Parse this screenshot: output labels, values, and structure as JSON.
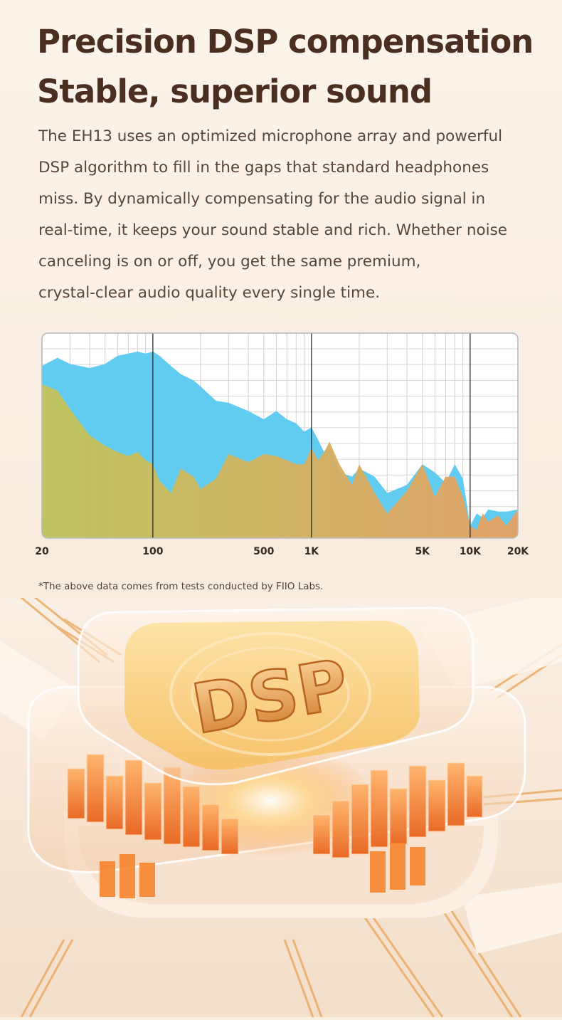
{
  "headline": {
    "line1": "Precision DSP compensation",
    "line2": "Stable, superior sound"
  },
  "body": {
    "lines": [
      "The EH13 uses an optimized microphone array and powerful",
      "DSP algorithm to fill in the gaps that standard headphones",
      "miss. By dynamically compensating for the audio signal in",
      "real-time, it keeps your sound stable and rich. Whether noise",
      "canceling is on or off, you get the same premium,",
      "crystal-clear audio quality every single time."
    ]
  },
  "footnote": "*The above data comes from tests conducted by FIIO Labs.",
  "illustration": {
    "label": "DSP"
  },
  "colors": {
    "heading": "#4a2e20",
    "body": "#5a4538",
    "series_blue": "#62ccf0",
    "series_green": "#c4c45a",
    "series_orange": "#e6a062"
  },
  "chart_data": {
    "type": "area",
    "xscale": "log",
    "xlim": [
      20,
      20000
    ],
    "ylim": [
      0,
      100
    ],
    "grid": true,
    "x_ticks": [
      {
        "value": 20,
        "label": "20"
      },
      {
        "value": 100,
        "label": "100"
      },
      {
        "value": 500,
        "label": "500"
      },
      {
        "value": 1000,
        "label": "1K"
      },
      {
        "value": 5000,
        "label": "5K"
      },
      {
        "value": 10000,
        "label": "10K"
      },
      {
        "value": 20000,
        "label": "20K"
      }
    ],
    "series": [
      {
        "color": "#62ccf0",
        "x": [
          20,
          25,
          30,
          40,
          50,
          60,
          70,
          80,
          90,
          100,
          110,
          130,
          150,
          180,
          200,
          250,
          300,
          400,
          500,
          600,
          700,
          800,
          900,
          1000,
          1100,
          1200,
          1300,
          1500,
          1800,
          2000,
          2500,
          3000,
          4000,
          5000,
          6000,
          7000,
          8000,
          9000,
          10000,
          11000,
          12000,
          13000,
          15000,
          17000,
          20000
        ],
        "values": [
          84,
          88,
          85,
          83,
          85,
          89,
          90,
          91,
          90,
          91,
          89,
          84,
          80,
          77,
          74,
          67,
          66,
          62,
          58,
          62,
          58,
          56,
          52,
          54,
          48,
          42,
          46,
          32,
          30,
          34,
          30,
          22,
          26,
          36,
          32,
          27,
          36,
          29,
          6,
          12,
          10,
          14,
          13,
          13,
          14
        ]
      },
      {
        "color": "#c4c45a",
        "x": [
          20,
          25,
          30,
          40,
          50,
          60,
          70,
          80,
          90,
          100,
          110,
          130,
          150,
          180,
          200,
          250,
          300,
          400,
          500,
          600,
          700,
          800,
          900,
          1000,
          1100,
          1200,
          1300,
          1500,
          1800,
          2000,
          2500,
          3000,
          4000,
          5000,
          6000,
          7000,
          8000,
          9000,
          10000,
          11000,
          12000,
          13000,
          15000,
          17000,
          20000
        ],
        "values": [
          75,
          72,
          63,
          50,
          45,
          42,
          40,
          42,
          38,
          36,
          28,
          22,
          34,
          30,
          24,
          29,
          41,
          37,
          41,
          40,
          38,
          36,
          36,
          44,
          38,
          42,
          47,
          36,
          26,
          36,
          22,
          12,
          23,
          36,
          20,
          30,
          30,
          20,
          6,
          4,
          12,
          8,
          11,
          6,
          14
        ]
      }
    ]
  }
}
